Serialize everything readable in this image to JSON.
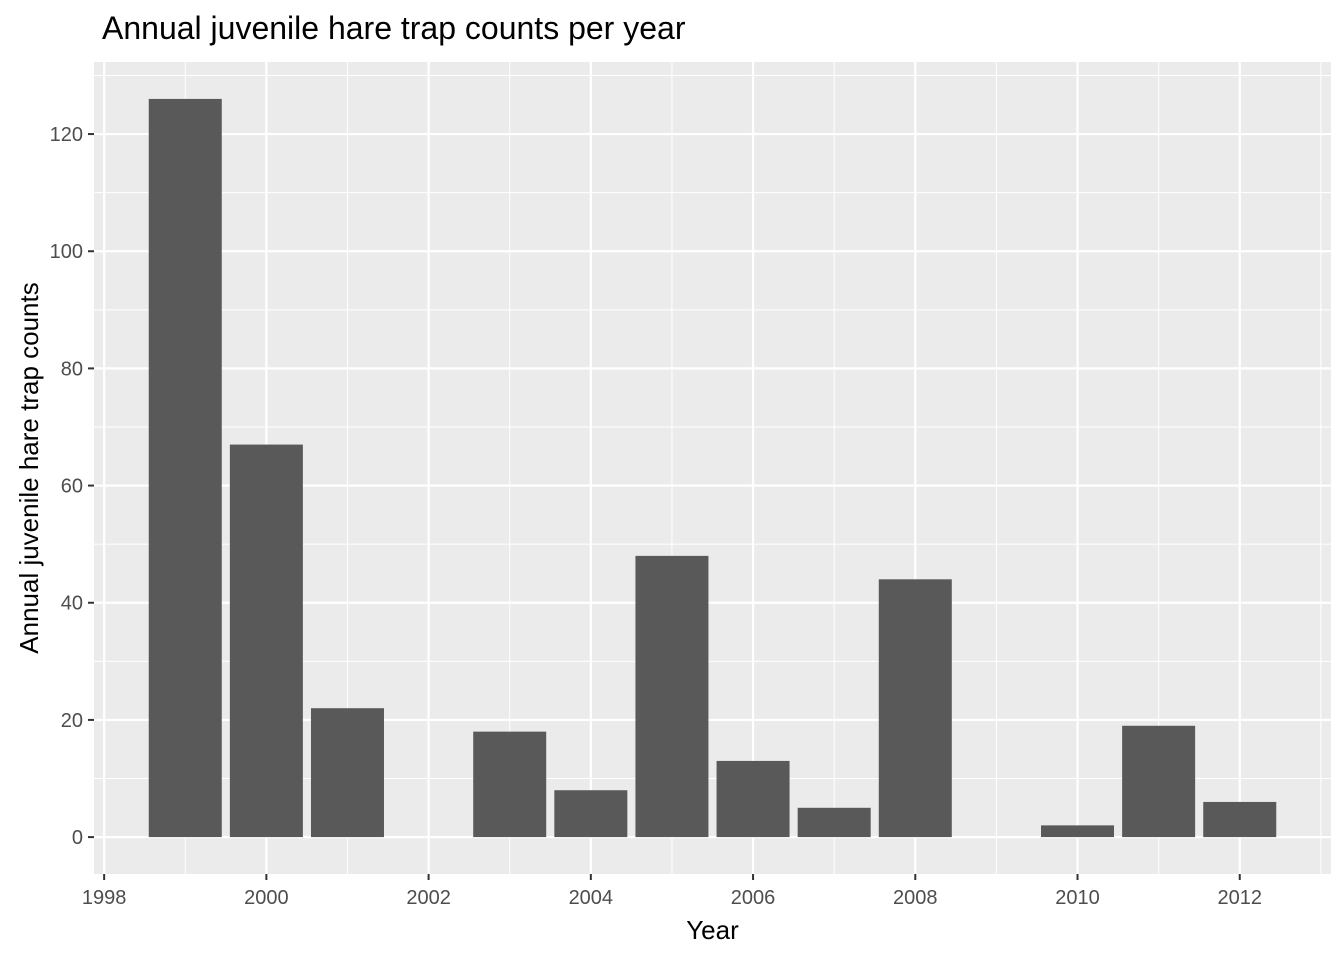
{
  "chart_data": {
    "type": "bar",
    "title": "Annual juvenile hare trap counts per year",
    "xlabel": "Year",
    "ylabel": "Annual juvenile hare trap counts",
    "x": [
      1999,
      2000,
      2001,
      2003,
      2004,
      2005,
      2006,
      2007,
      2008,
      2010,
      2011,
      2012
    ],
    "values": [
      126,
      67,
      22,
      18,
      8,
      48,
      13,
      5,
      44,
      2,
      19,
      6
    ],
    "xlim": [
      1997.875,
      2013.125
    ],
    "ylim": [
      -6.3,
      132.3
    ],
    "x_ticks": [
      1998,
      2000,
      2002,
      2004,
      2006,
      2008,
      2010,
      2012
    ],
    "x_tick_labels": [
      "1998",
      "2000",
      "2002",
      "2004",
      "2006",
      "2008",
      "2010",
      "2012"
    ],
    "y_ticks": [
      0,
      20,
      40,
      60,
      80,
      100,
      120
    ],
    "y_tick_labels": [
      "0",
      "20",
      "40",
      "60",
      "80",
      "100",
      "120"
    ],
    "grid": true,
    "colors": {
      "panel_bg": "#ebebeb",
      "grid_major": "#ffffff",
      "bar": "#595959",
      "tick": "#333333",
      "tick_label": "#4d4d4d"
    }
  }
}
